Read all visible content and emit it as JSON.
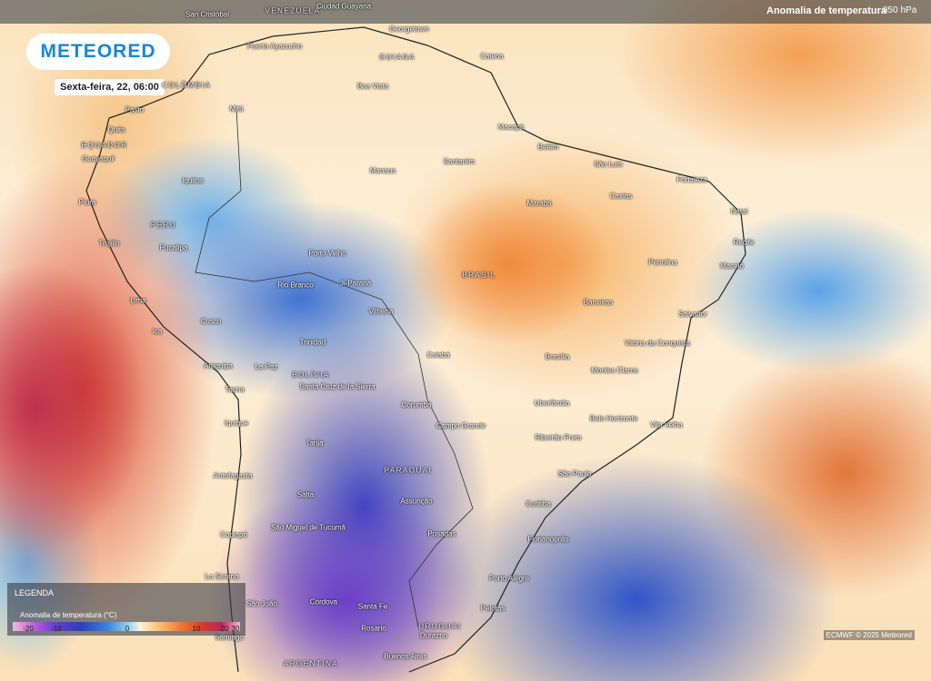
{
  "header": {
    "layer": "Anomalia de temperatura",
    "level": "850 hPa"
  },
  "logo": "METEORED",
  "date": "Sexta-feira, 22, 06:00",
  "legend": {
    "title": "LEGENDA",
    "label": "Anomalia de temperatura (°C)",
    "ticks": [
      -20,
      -10,
      0,
      10,
      20,
      30
    ]
  },
  "credit": "ECMWF © 2025 Meteored",
  "places": [
    "San Cristóbal",
    "VENEZUELA",
    "Ciudad Guayana",
    "Georgetown",
    "Puerto Ayacucho",
    "GUIANA",
    "Caiena",
    "Boa Vista",
    "COLÔMBIA",
    "Pasto",
    "Mitú",
    "Macapá",
    "EQUADOR",
    "Belém",
    "Quito",
    "Guayaquil",
    "São Luís",
    "Santarém",
    "Manaus",
    "Fortaleza",
    "Iquitos",
    "Marabá",
    "Caxias",
    "Piura",
    "Natal",
    "PERU",
    "Trujillo",
    "Pucallpa",
    "Recife",
    "Porto Velho",
    "Petrolina",
    "Maceió",
    "BRASIL",
    "Rio Branco",
    "Ji-Paraná",
    "Lima",
    "Barreiras",
    "Vilhena",
    "Salvador",
    "Cusco",
    "Ica",
    "Trinidad",
    "Vitória da Conquista",
    "Cuiabá",
    "Brasília",
    "Arequipa",
    "La Paz",
    "Montes Claros",
    "BOLÍVIA",
    "Santa Cruz de la Sierra",
    "Tacna",
    "Corumbá",
    "Uberlândia",
    "Iquique",
    "Belo Horizonte",
    "Campo Grande",
    "Vila Velha",
    "Tarija",
    "Ribeirão Preto",
    "PARAGUAI",
    "São Paulo",
    "Antofagasta",
    "Salta",
    "Curitiba",
    "Assunção",
    "São Miguel de Tucumã",
    "Posadas",
    "Copiapó",
    "Florianópolis",
    "Porto Alegre",
    "La Serena",
    "Córdova",
    "São João",
    "Santa Fe",
    "Pelotas",
    "Rosario",
    "URUGUAI",
    "Durazno",
    "Santiago",
    "Buenos Aires",
    "ARGENTINA"
  ]
}
